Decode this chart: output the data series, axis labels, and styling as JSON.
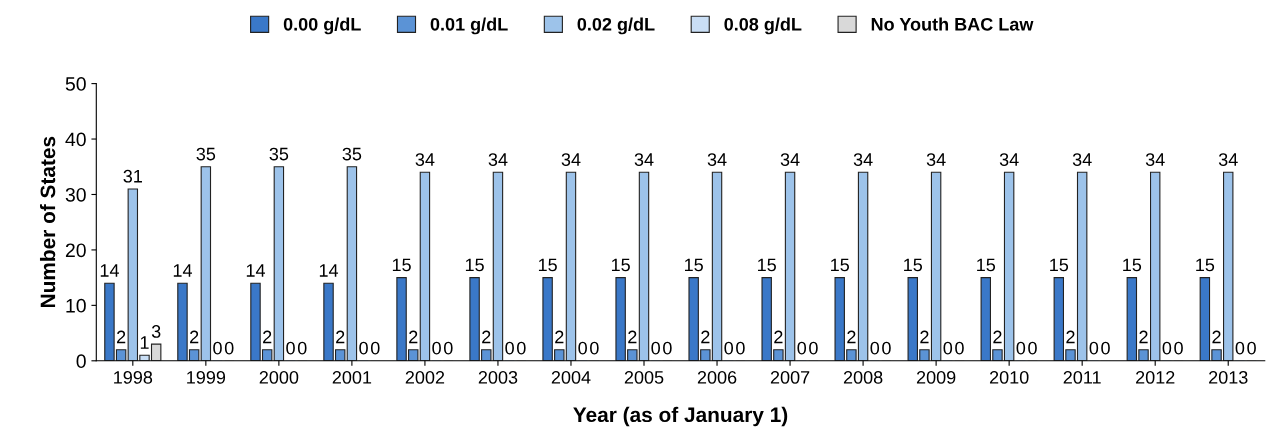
{
  "chart_data": {
    "type": "bar",
    "xlabel": "Year (as of January 1)",
    "ylabel": "Number of States",
    "categories": [
      "1998",
      "1999",
      "2000",
      "2001",
      "2002",
      "2003",
      "2004",
      "2005",
      "2006",
      "2007",
      "2008",
      "2009",
      "2010",
      "2011",
      "2012",
      "2013"
    ],
    "series": [
      {
        "name": "0.00 g/dL",
        "color": "#3a78c8",
        "values": [
          14,
          14,
          14,
          14,
          15,
          15,
          15,
          15,
          15,
          15,
          15,
          15,
          15,
          15,
          15,
          15
        ]
      },
      {
        "name": "0.01 g/dL",
        "color": "#5b93d6",
        "values": [
          2,
          2,
          2,
          2,
          2,
          2,
          2,
          2,
          2,
          2,
          2,
          2,
          2,
          2,
          2,
          2
        ]
      },
      {
        "name": "0.02 g/dL",
        "color": "#9dc3ea",
        "values": [
          31,
          35,
          35,
          35,
          34,
          34,
          34,
          34,
          34,
          34,
          34,
          34,
          34,
          34,
          34,
          34
        ]
      },
      {
        "name": "0.08 g/dL",
        "color": "#c9def5",
        "values": [
          1,
          0,
          0,
          0,
          0,
          0,
          0,
          0,
          0,
          0,
          0,
          0,
          0,
          0,
          0,
          0
        ]
      },
      {
        "name": "No Youth BAC Law",
        "color": "#d9d9d9",
        "values": [
          3,
          0,
          0,
          0,
          0,
          0,
          0,
          0,
          0,
          0,
          0,
          0,
          0,
          0,
          0,
          0
        ]
      }
    ],
    "ylim": [
      0,
      50
    ],
    "yticks": [
      0,
      10,
      20,
      30,
      40,
      50
    ],
    "data_labels": true,
    "grid": false,
    "legend": "top"
  }
}
